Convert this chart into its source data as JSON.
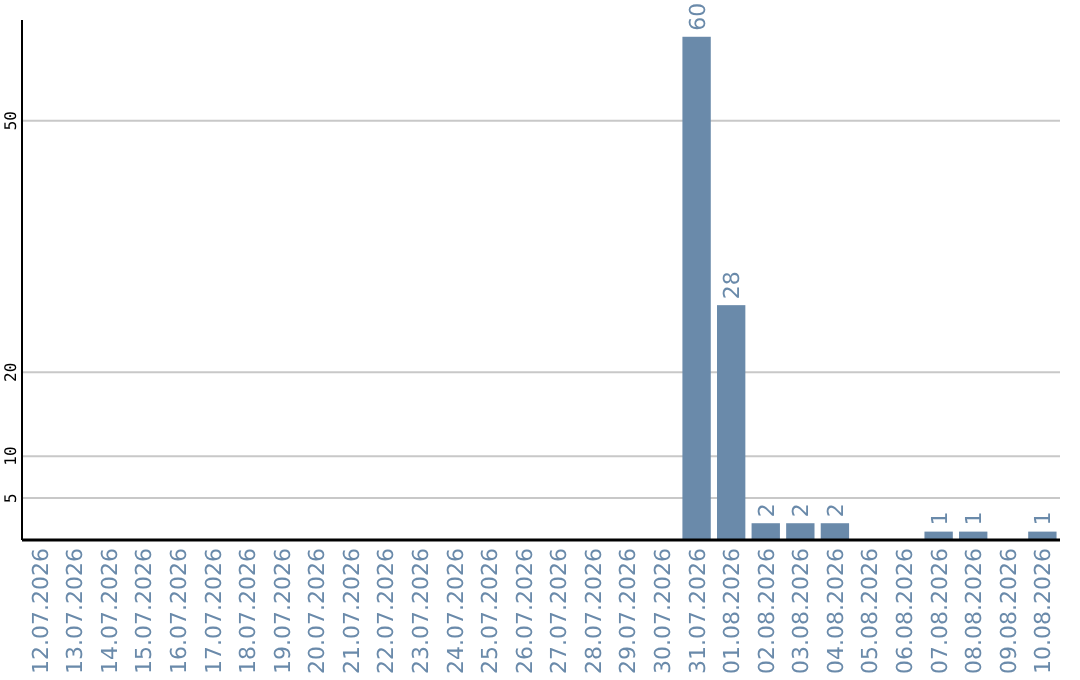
{
  "chart_data": {
    "type": "bar",
    "categories": [
      "12.07.2026",
      "13.07.2026",
      "14.07.2026",
      "15.07.2026",
      "16.07.2026",
      "17.07.2026",
      "18.07.2026",
      "19.07.2026",
      "20.07.2026",
      "21.07.2026",
      "22.07.2026",
      "23.07.2026",
      "24.07.2026",
      "25.07.2026",
      "26.07.2026",
      "27.07.2026",
      "28.07.2026",
      "29.07.2026",
      "30.07.2026",
      "31.07.2026",
      "01.08.2026",
      "02.08.2026",
      "03.08.2026",
      "04.08.2026",
      "05.08.2026",
      "06.08.2026",
      "07.08.2026",
      "08.08.2026",
      "09.08.2026",
      "10.08.2026"
    ],
    "values": [
      0,
      0,
      0,
      0,
      0,
      0,
      0,
      0,
      0,
      0,
      0,
      0,
      0,
      0,
      0,
      0,
      0,
      0,
      0,
      60,
      28,
      2,
      2,
      2,
      0,
      0,
      1,
      1,
      0,
      1
    ],
    "value_labels": [
      null,
      null,
      null,
      null,
      null,
      null,
      null,
      null,
      null,
      null,
      null,
      null,
      null,
      null,
      null,
      null,
      null,
      null,
      null,
      "60",
      "28",
      "2",
      "2",
      "2",
      null,
      null,
      "1",
      "1",
      null,
      "1"
    ],
    "color": "#6a8aaa",
    "ylim": [
      0,
      62
    ],
    "yticks": [
      5,
      10,
      20,
      50
    ],
    "grid": "y"
  }
}
